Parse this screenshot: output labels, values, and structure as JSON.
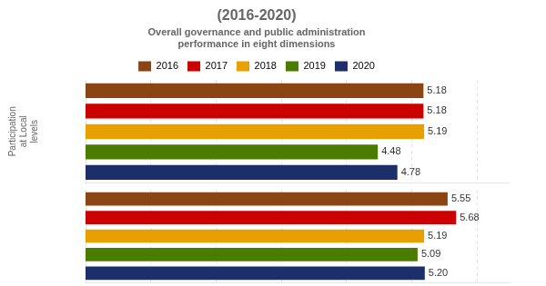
{
  "chart_data": [
    {
      "type": "bar",
      "orientation": "horizontal",
      "title": "(2016-2020)",
      "subtitle": [
        "Overall governance and public administration",
        "performance in eight dimensions"
      ],
      "ylabel": "Participation\nat Local\nlevels",
      "categories": [
        "2016",
        "2017",
        "2018",
        "2019",
        "2020"
      ],
      "values": [
        5.18,
        5.18,
        5.19,
        4.48,
        4.78
      ],
      "colors": [
        "#8B4513",
        "#CC0000",
        "#E8A000",
        "#4A7C00",
        "#1C2F6B"
      ],
      "xlim": [
        0,
        6.5
      ],
      "xticks": [
        1,
        2,
        3,
        4,
        5,
        6
      ],
      "grid": true,
      "tick_labels": false,
      "data_labels": true,
      "legend": "top"
    },
    {
      "type": "bar",
      "orientation": "horizontal",
      "categories": [
        "2016",
        "2017",
        "2018",
        "2019",
        "2020"
      ],
      "values": [
        5.55,
        5.68,
        5.19,
        5.09,
        5.2
      ],
      "value_labels": [
        "5.55",
        "5.68",
        "5.19",
        "5.09",
        "5.20"
      ],
      "colors": [
        "#8B4513",
        "#CC0000",
        "#E8A000",
        "#4A7C00",
        "#1C2F6B"
      ],
      "xlim": [
        0,
        6.5
      ],
      "xticks": [
        1,
        2,
        3,
        4,
        5,
        6
      ],
      "grid": true,
      "tick_labels": false,
      "data_labels": true
    }
  ]
}
